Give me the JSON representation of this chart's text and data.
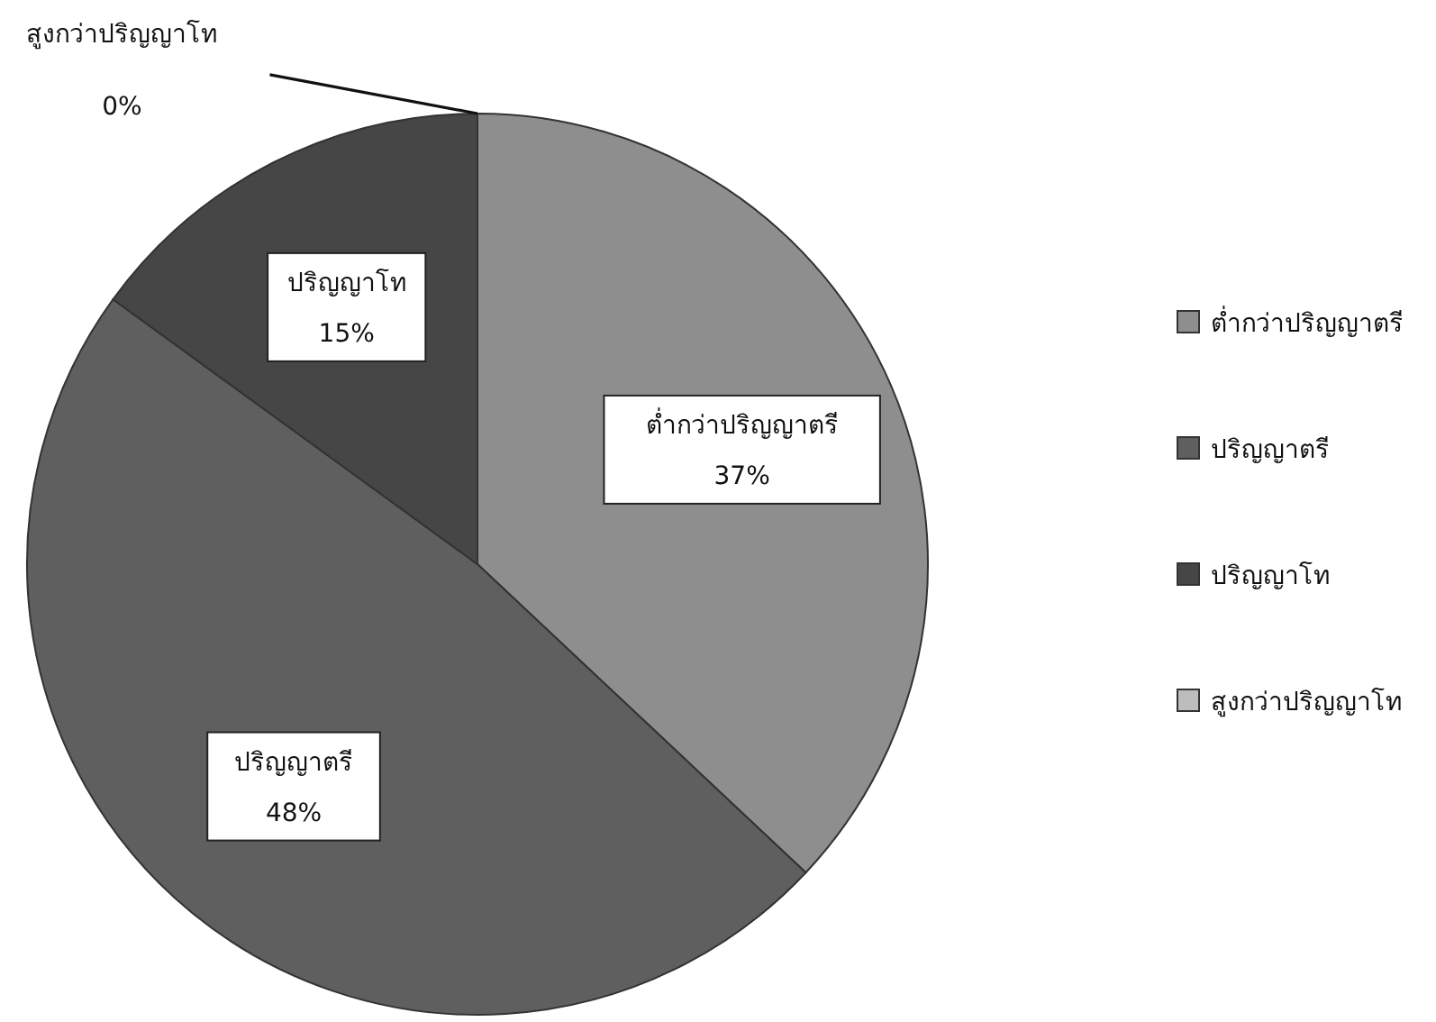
{
  "chart_data": {
    "type": "pie",
    "categories": [
      "ต่ำกว่าปริญญาตรี",
      "ปริญญาตรี",
      "ปริญญาโท",
      "สูงกว่าปริญญาโท"
    ],
    "values": [
      37,
      48,
      15,
      0
    ],
    "colors": [
      "#8e8e8e",
      "#5f5f5f",
      "#464646",
      "#bdbdbd"
    ],
    "value_labels": [
      "37%",
      "48%",
      "15%",
      "0%"
    ],
    "legend": "right"
  }
}
